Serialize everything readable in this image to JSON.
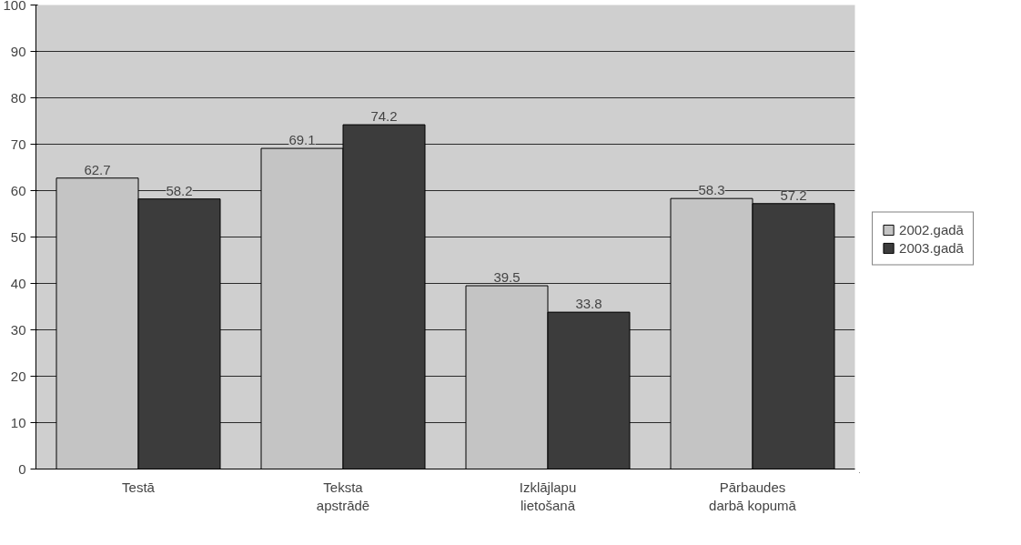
{
  "chart_data": {
    "type": "bar",
    "categories": [
      "Testā",
      "Teksta\napstrādē",
      "Izklājlapu\nlietošanā",
      "Pārbaudes\ndarbā kopumā"
    ],
    "series": [
      {
        "name": "2002.gadā",
        "color": "#c4c4c4",
        "values": [
          62.7,
          69.1,
          39.5,
          58.3
        ]
      },
      {
        "name": "2003.gadā",
        "color": "#3c3c3c",
        "values": [
          58.2,
          74.2,
          33.8,
          57.2
        ]
      }
    ],
    "ylim": [
      0,
      100
    ],
    "yticks": [
      0,
      10,
      20,
      30,
      40,
      50,
      60,
      70,
      80,
      90,
      100
    ],
    "data_labels": true,
    "grid": "y",
    "legend": "right"
  }
}
